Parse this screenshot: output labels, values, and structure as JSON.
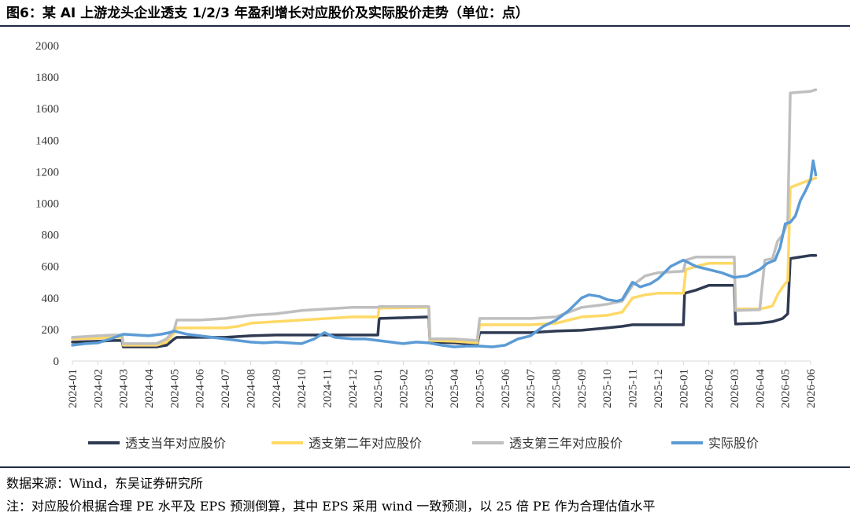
{
  "figure": {
    "title": "图6：某 AI 上游龙头企业透支 1/2/3 年盈利增长对应股价及实际股价走势（单位：点）",
    "source": "数据来源：Wind，东吴证券研究所",
    "note": "注：对应股价根据合理 PE 水平及 EPS 预测倒算，其中 EPS 采用 wind 一致预测，以 25 倍 PE 作为合理估值水平"
  },
  "colors": {
    "series1": "#2f3a52",
    "series2": "#ffd966",
    "series3": "#bfbfbf",
    "series4": "#5b9bd5",
    "axis": "#d9d9d9",
    "rule": "#1f2a44"
  },
  "chart_data": {
    "type": "line",
    "x_labels": [
      "2024-01",
      "2024-02",
      "2024-03",
      "2024-04",
      "2024-05",
      "2024-06",
      "2024-07",
      "2024-08",
      "2024-09",
      "2024-10",
      "2024-11",
      "2024-12",
      "2025-01",
      "2025-02",
      "2025-03",
      "2025-04",
      "2025-05",
      "2025-06",
      "2025-07",
      "2025-08",
      "2025-09",
      "2025-10",
      "2025-11",
      "2025-12",
      "2026-01",
      "2026-02",
      "2026-03",
      "2026-04",
      "2026-05",
      "2026-06"
    ],
    "ylim": [
      0,
      2000
    ],
    "yticks": [
      0,
      200,
      400,
      600,
      800,
      1000,
      1200,
      1400,
      1600,
      1800,
      2000
    ],
    "grid": false,
    "legend_position": "bottom",
    "series": [
      {
        "name": "透支当年对应股价",
        "color_key": "series1",
        "points": [
          [
            0,
            120
          ],
          [
            1,
            125
          ],
          [
            1.6,
            130
          ],
          [
            1.95,
            130
          ],
          [
            2.0,
            90
          ],
          [
            3.3,
            90
          ],
          [
            3.7,
            100
          ],
          [
            4.0,
            140
          ],
          [
            4.1,
            150
          ],
          [
            4.5,
            150
          ],
          [
            5,
            150
          ],
          [
            6,
            150
          ],
          [
            7,
            160
          ],
          [
            8,
            165
          ],
          [
            9,
            165
          ],
          [
            10,
            165
          ],
          [
            11,
            165
          ],
          [
            12,
            165
          ],
          [
            12.05,
            270
          ],
          [
            14,
            280
          ],
          [
            14.05,
            120
          ],
          [
            15,
            115
          ],
          [
            15.9,
            105
          ],
          [
            16.0,
            180
          ],
          [
            18,
            180
          ],
          [
            19,
            190
          ],
          [
            20,
            195
          ],
          [
            21,
            210
          ],
          [
            21.6,
            220
          ],
          [
            22,
            230
          ],
          [
            23,
            230
          ],
          [
            24,
            230
          ],
          [
            24.05,
            430
          ],
          [
            24.5,
            450
          ],
          [
            25,
            480
          ],
          [
            26,
            480
          ],
          [
            26.05,
            235
          ],
          [
            27,
            240
          ],
          [
            27.5,
            250
          ],
          [
            27.9,
            270
          ],
          [
            28.1,
            300
          ],
          [
            28.2,
            650
          ],
          [
            29,
            670
          ],
          [
            29.2,
            670
          ]
        ]
      },
      {
        "name": "透支第二年对应股价",
        "color_key": "series2",
        "points": [
          [
            0,
            140
          ],
          [
            1,
            145
          ],
          [
            1.6,
            150
          ],
          [
            1.95,
            150
          ],
          [
            2.0,
            100
          ],
          [
            3.3,
            100
          ],
          [
            3.7,
            120
          ],
          [
            4.0,
            180
          ],
          [
            4.1,
            210
          ],
          [
            5,
            210
          ],
          [
            6,
            210
          ],
          [
            6.5,
            220
          ],
          [
            7,
            240
          ],
          [
            8,
            250
          ],
          [
            9,
            260
          ],
          [
            10,
            270
          ],
          [
            11,
            280
          ],
          [
            12,
            280
          ],
          [
            12.05,
            335
          ],
          [
            14,
            340
          ],
          [
            14.05,
            130
          ],
          [
            15,
            125
          ],
          [
            15.9,
            115
          ],
          [
            16.0,
            230
          ],
          [
            18,
            230
          ],
          [
            19,
            240
          ],
          [
            20,
            280
          ],
          [
            21,
            290
          ],
          [
            21.6,
            310
          ],
          [
            22,
            400
          ],
          [
            22.5,
            420
          ],
          [
            23,
            430
          ],
          [
            24,
            430
          ],
          [
            24.1,
            580
          ],
          [
            24.5,
            600
          ],
          [
            25,
            620
          ],
          [
            26,
            620
          ],
          [
            26.05,
            330
          ],
          [
            27,
            330
          ],
          [
            27.3,
            340
          ],
          [
            27.5,
            350
          ],
          [
            27.7,
            420
          ],
          [
            27.9,
            470
          ],
          [
            28.1,
            510
          ],
          [
            28.2,
            1100
          ],
          [
            29,
            1150
          ],
          [
            29.2,
            1160
          ]
        ]
      },
      {
        "name": "透支第三年对应股价",
        "color_key": "series3",
        "points": [
          [
            0,
            150
          ],
          [
            1,
            160
          ],
          [
            1.6,
            165
          ],
          [
            1.95,
            165
          ],
          [
            2.0,
            110
          ],
          [
            3.3,
            110
          ],
          [
            3.7,
            140
          ],
          [
            4.0,
            200
          ],
          [
            4.1,
            260
          ],
          [
            5,
            260
          ],
          [
            6,
            270
          ],
          [
            6.5,
            280
          ],
          [
            7,
            290
          ],
          [
            8,
            300
          ],
          [
            9,
            320
          ],
          [
            10,
            330
          ],
          [
            11,
            340
          ],
          [
            12,
            340
          ],
          [
            12.05,
            345
          ],
          [
            14,
            345
          ],
          [
            14.05,
            140
          ],
          [
            15,
            140
          ],
          [
            15.9,
            130
          ],
          [
            16.0,
            270
          ],
          [
            18,
            270
          ],
          [
            19,
            280
          ],
          [
            20,
            340
          ],
          [
            21,
            360
          ],
          [
            21.6,
            380
          ],
          [
            22,
            480
          ],
          [
            22.5,
            540
          ],
          [
            23,
            560
          ],
          [
            24,
            570
          ],
          [
            24.1,
            640
          ],
          [
            24.5,
            660
          ],
          [
            25,
            660
          ],
          [
            26,
            660
          ],
          [
            26.05,
            320
          ],
          [
            27,
            325
          ],
          [
            27.2,
            640
          ],
          [
            27.5,
            650
          ],
          [
            27.7,
            760
          ],
          [
            27.9,
            800
          ],
          [
            28.1,
            880
          ],
          [
            28.2,
            1700
          ],
          [
            29,
            1710
          ],
          [
            29.2,
            1720
          ]
        ]
      },
      {
        "name": "实际股价",
        "color_key": "series4",
        "points": [
          [
            0,
            100
          ],
          [
            0.5,
            110
          ],
          [
            1,
            115
          ],
          [
            1.5,
            140
          ],
          [
            2,
            170
          ],
          [
            2.5,
            165
          ],
          [
            3,
            160
          ],
          [
            3.5,
            170
          ],
          [
            3.8,
            180
          ],
          [
            4,
            190
          ],
          [
            4.5,
            170
          ],
          [
            5,
            160
          ],
          [
            5.5,
            150
          ],
          [
            6,
            140
          ],
          [
            6.5,
            130
          ],
          [
            7,
            120
          ],
          [
            7.5,
            115
          ],
          [
            8,
            120
          ],
          [
            8.5,
            115
          ],
          [
            9,
            110
          ],
          [
            9.5,
            140
          ],
          [
            9.9,
            180
          ],
          [
            10.3,
            150
          ],
          [
            11,
            140
          ],
          [
            11.5,
            140
          ],
          [
            12,
            130
          ],
          [
            12.5,
            120
          ],
          [
            13,
            110
          ],
          [
            13.5,
            120
          ],
          [
            14,
            115
          ],
          [
            14.5,
            100
          ],
          [
            15,
            90
          ],
          [
            15.5,
            95
          ],
          [
            16,
            95
          ],
          [
            16.5,
            90
          ],
          [
            17,
            100
          ],
          [
            17.5,
            140
          ],
          [
            18,
            160
          ],
          [
            18.5,
            220
          ],
          [
            19,
            260
          ],
          [
            19.5,
            320
          ],
          [
            20,
            400
          ],
          [
            20.3,
            420
          ],
          [
            20.7,
            410
          ],
          [
            21,
            390
          ],
          [
            21.4,
            380
          ],
          [
            21.6,
            390
          ],
          [
            22,
            500
          ],
          [
            22.3,
            470
          ],
          [
            22.7,
            490
          ],
          [
            23,
            520
          ],
          [
            23.5,
            600
          ],
          [
            24,
            640
          ],
          [
            24.5,
            600
          ],
          [
            25,
            580
          ],
          [
            25.5,
            560
          ],
          [
            26,
            530
          ],
          [
            26.5,
            540
          ],
          [
            27,
            580
          ],
          [
            27.3,
            620
          ],
          [
            27.6,
            640
          ],
          [
            27.8,
            720
          ],
          [
            28.0,
            870
          ],
          [
            28.2,
            880
          ],
          [
            28.4,
            920
          ],
          [
            28.6,
            1020
          ],
          [
            28.8,
            1080
          ],
          [
            29.0,
            1150
          ],
          [
            29.1,
            1270
          ],
          [
            29.2,
            1180
          ]
        ]
      }
    ]
  }
}
